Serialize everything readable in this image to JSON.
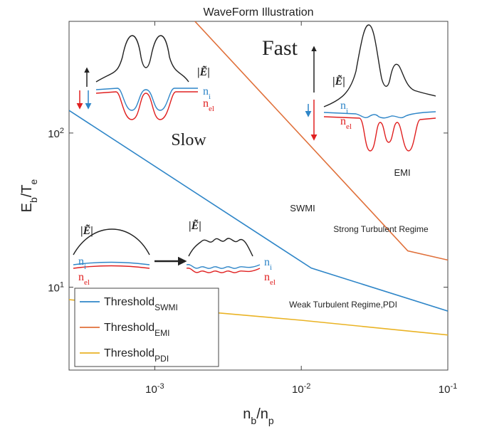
{
  "chart_data": {
    "type": "line",
    "title": "WaveForm Illustration",
    "xlabel": [
      {
        "text": "n"
      },
      {
        "text": "b",
        "sub": true
      },
      {
        "text": "/n"
      },
      {
        "text": "p",
        "sub": true
      }
    ],
    "ylabel": [
      {
        "text": "E"
      },
      {
        "text": "b",
        "sub": true
      },
      {
        "text": "/T"
      },
      {
        "text": "e",
        "sub": true
      }
    ],
    "xscale": "log",
    "yscale": "log",
    "xlim": [
      0.00026,
      0.1
    ],
    "ylim": [
      2.9,
      530
    ],
    "xticks": [
      {
        "value": 0.001,
        "label": "10",
        "exponent": "-3"
      },
      {
        "value": 0.01,
        "label": "10",
        "exponent": "-2"
      },
      {
        "value": 0.1,
        "label": "10",
        "exponent": "-1"
      }
    ],
    "yticks": [
      {
        "value": 10,
        "label": "10",
        "exponent": "1"
      },
      {
        "value": 100,
        "label": "10",
        "exponent": "2"
      }
    ],
    "legend": "lower left",
    "series": [
      {
        "name": "Threshold",
        "subscript": "SWMI",
        "color": "#2f86c8",
        "x": [
          0.00026,
          0.0117,
          0.1
        ],
        "values": [
          140,
          13.3,
          7.0
        ]
      },
      {
        "name": "Threshold",
        "subscript": "EMI",
        "color": "#e0703a",
        "x": [
          0.00188,
          0.0533,
          0.1
        ],
        "values": [
          530,
          17.2,
          15.0
        ]
      },
      {
        "name": "Threshold",
        "subscript": "PDI",
        "color": "#eab324",
        "x": [
          0.00026,
          0.01,
          0.1
        ],
        "values": [
          8.3,
          6.1,
          4.9
        ]
      }
    ],
    "annotations": [
      {
        "text": "Slow"
      },
      {
        "text": "Fast"
      },
      {
        "text": "EMI"
      },
      {
        "text": "SWMI"
      },
      {
        "text": "Strong Turbulent Regime"
      },
      {
        "text": "Weak Turbulent Regime,PDI"
      },
      {
        "text": "|Ẽ|"
      },
      {
        "parts": [
          {
            "text": "n"
          },
          {
            "text": "i",
            "sub": true
          }
        ]
      },
      {
        "parts": [
          {
            "text": "n"
          },
          {
            "text": "el",
            "sub": true
          }
        ]
      },
      {
        "text": "|Ẽ|"
      },
      {
        "parts": [
          {
            "text": "n"
          },
          {
            "text": "i",
            "sub": true
          }
        ]
      },
      {
        "parts": [
          {
            "text": "n"
          },
          {
            "text": "el",
            "sub": true
          }
        ]
      },
      {
        "text": "|Ẽ|"
      },
      {
        "parts": [
          {
            "text": "n"
          },
          {
            "text": "i",
            "sub": true
          }
        ]
      },
      {
        "parts": [
          {
            "text": "n"
          },
          {
            "text": "el",
            "sub": true
          }
        ]
      },
      {
        "text": "|Ẽ|"
      },
      {
        "parts": [
          {
            "text": "n"
          },
          {
            "text": "i",
            "sub": true
          }
        ]
      },
      {
        "parts": [
          {
            "text": "n"
          },
          {
            "text": "el",
            "sub": true
          }
        ]
      }
    ]
  }
}
